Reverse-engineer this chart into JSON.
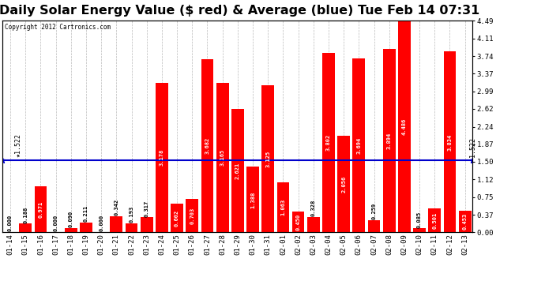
{
  "title": "Daily Solar Energy Value ($ red) & Average (blue) Tue Feb 14 07:31",
  "copyright": "Copyright 2012 Cartronics.com",
  "average_line": 1.522,
  "categories": [
    "01-14",
    "01-15",
    "01-16",
    "01-17",
    "01-18",
    "01-19",
    "01-20",
    "01-21",
    "01-22",
    "01-23",
    "01-24",
    "01-25",
    "01-26",
    "01-27",
    "01-28",
    "01-29",
    "01-30",
    "01-31",
    "02-01",
    "02-02",
    "02-03",
    "02-04",
    "02-05",
    "02-06",
    "02-07",
    "02-08",
    "02-09",
    "02-10",
    "02-11",
    "02-12",
    "02-13"
  ],
  "values": [
    0.0,
    0.188,
    0.971,
    0.0,
    0.09,
    0.211,
    0.0,
    0.342,
    0.193,
    0.317,
    3.178,
    0.602,
    0.703,
    3.682,
    3.165,
    2.621,
    1.388,
    3.125,
    1.063,
    0.45,
    0.328,
    3.802,
    2.056,
    3.694,
    0.259,
    3.894,
    4.486,
    0.085,
    0.501,
    3.834,
    0.453
  ],
  "bar_color": "#FF0000",
  "line_color": "#0000CC",
  "bg_color": "#FFFFFF",
  "plot_bg_color": "#FFFFFF",
  "grid_color": "#BBBBBB",
  "yticks_right": [
    0.0,
    0.37,
    0.75,
    1.12,
    1.5,
    1.87,
    2.24,
    2.62,
    2.99,
    3.37,
    3.74,
    4.11,
    4.49
  ],
  "ylim": [
    0,
    4.49
  ],
  "title_fontsize": 11.5,
  "axis_fontsize": 6.5,
  "value_fontsize": 5.0
}
